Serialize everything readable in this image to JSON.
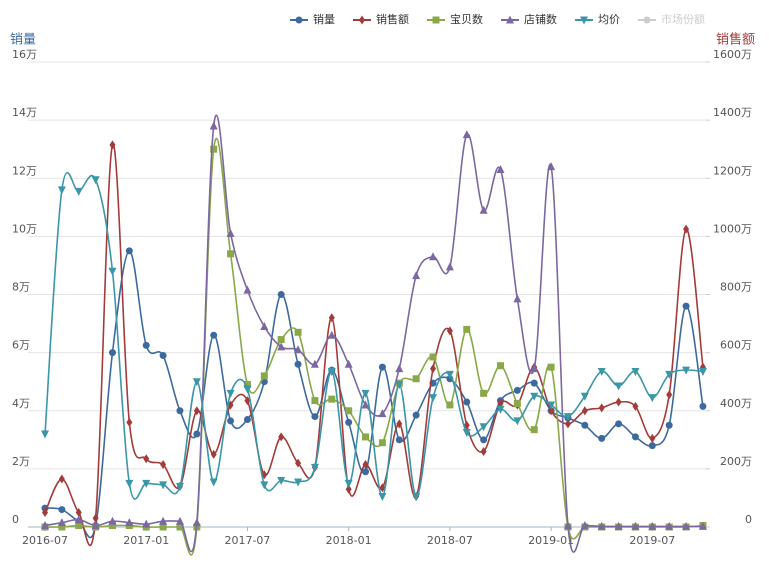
{
  "chart_data": {
    "type": "line",
    "categories": [
      "2016-07",
      null,
      null,
      null,
      null,
      null,
      "2017-01",
      null,
      null,
      null,
      null,
      null,
      "2017-07",
      null,
      null,
      null,
      null,
      null,
      "2018-01",
      null,
      null,
      null,
      null,
      null,
      "2018-07",
      null,
      null,
      null,
      null,
      null,
      "2019-01",
      null,
      null,
      null,
      null,
      null,
      "2019-07",
      null,
      null,
      null
    ],
    "ylabel": "销量",
    "y2label": "销售额",
    "ylim": [
      0,
      16
    ],
    "yticks": [
      0,
      {
        "value": 2,
        "label": "2万"
      },
      {
        "value": 4,
        "label": "4万"
      },
      {
        "value": 6,
        "label": "6万"
      },
      {
        "value": 8,
        "label": "8万"
      },
      {
        "value": 10,
        "label": "10万"
      },
      {
        "value": 12,
        "label": "12万"
      },
      {
        "value": 14,
        "label": "14万"
      },
      {
        "value": 16,
        "label": "16万"
      }
    ],
    "y2lim": [
      0,
      1600
    ],
    "y2ticks": [
      0,
      {
        "value": 200,
        "label": "200万"
      },
      {
        "value": 400,
        "label": "400万"
      },
      {
        "value": 600,
        "label": "600万"
      },
      {
        "value": 800,
        "label": "800万"
      },
      {
        "value": 1000,
        "label": "1000万"
      },
      {
        "value": 1200,
        "label": "1200万"
      },
      {
        "value": 1400,
        "label": "1400万"
      },
      {
        "value": 1600,
        "label": "1600万"
      }
    ],
    "grid": true,
    "smooth": true,
    "legend": "top-right",
    "series": [
      {
        "name": "销量",
        "color": "#3d6a9e",
        "marker": "circle",
        "values": [
          0.65,
          0.6,
          0.2,
          0.05,
          6.0,
          9.5,
          6.25,
          5.9,
          4.0,
          3.2,
          6.6,
          3.65,
          3.7,
          5.0,
          8.0,
          5.6,
          3.8,
          5.4,
          3.6,
          1.9,
          5.5,
          3.0,
          3.85,
          4.95,
          5.1,
          4.3,
          3.0,
          4.35,
          4.7,
          4.95,
          4.0,
          3.75,
          3.5,
          3.05,
          3.55,
          3.1,
          2.8,
          3.5,
          7.6,
          4.15
        ]
      },
      {
        "name": "销售额",
        "color": "#a33b3b",
        "marker": "diamond",
        "axis": "y2",
        "values": [
          50,
          165,
          50,
          30,
          1315,
          360,
          235,
          215,
          140,
          400,
          250,
          420,
          435,
          180,
          310,
          220,
          205,
          720,
          130,
          215,
          135,
          355,
          105,
          545,
          675,
          350,
          260,
          425,
          420,
          550,
          400,
          355,
          400,
          410,
          430,
          415,
          305,
          455,
          1025,
          550
        ]
      },
      {
        "name": "宝贝数",
        "color": "#8aa84a",
        "marker": "square",
        "values": [
          0,
          0,
          0.05,
          0,
          0.05,
          0.05,
          0,
          0,
          0,
          0,
          13.0,
          9.4,
          4.9,
          5.2,
          6.45,
          6.7,
          4.35,
          4.4,
          4.0,
          3.1,
          2.9,
          4.95,
          5.1,
          5.85,
          4.2,
          6.8,
          4.6,
          5.55,
          4.25,
          3.35,
          5.5,
          0,
          0,
          0,
          0,
          0,
          0,
          0,
          0,
          0.05
        ]
      },
      {
        "name": "店铺数",
        "color": "#7b68a0",
        "marker": "triangle",
        "values": [
          0.05,
          0.15,
          0.25,
          0.05,
          0.2,
          0.15,
          0.1,
          0.2,
          0.2,
          0.15,
          13.8,
          10.1,
          8.15,
          6.9,
          6.2,
          6.1,
          5.6,
          6.6,
          5.6,
          4.2,
          3.9,
          5.45,
          8.65,
          9.3,
          8.95,
          13.5,
          10.9,
          12.3,
          7.85,
          5.45,
          12.4,
          0.05,
          0.05,
          0.02,
          0.02,
          0.02,
          0.02,
          0.02,
          0.02,
          0.02
        ]
      },
      {
        "name": "均价",
        "color": "#3b96a8",
        "marker": "down-triangle",
        "values": [
          3.2,
          11.6,
          11.55,
          11.95,
          8.8,
          1.5,
          1.5,
          1.45,
          1.4,
          5.0,
          1.55,
          4.6,
          4.75,
          1.45,
          1.6,
          1.55,
          2.05,
          5.35,
          1.5,
          4.6,
          1.05,
          4.9,
          1.05,
          4.45,
          5.25,
          3.25,
          3.45,
          4.05,
          3.65,
          4.5,
          4.2,
          3.8,
          4.5,
          5.35,
          4.85,
          5.35,
          4.45,
          5.25,
          5.4,
          5.35
        ]
      },
      {
        "name": "市场份额",
        "color": "#cccccc",
        "marker": "circle",
        "hidden": true,
        "values": [
          null,
          null,
          null,
          null,
          null,
          null,
          null,
          null,
          null,
          null,
          null,
          null,
          null,
          null,
          null,
          null,
          null,
          null,
          null,
          null,
          null,
          null,
          null,
          null,
          null,
          null,
          null,
          null,
          null,
          null,
          null,
          null,
          null,
          null,
          null,
          null,
          null,
          null,
          null,
          null
        ]
      }
    ]
  }
}
